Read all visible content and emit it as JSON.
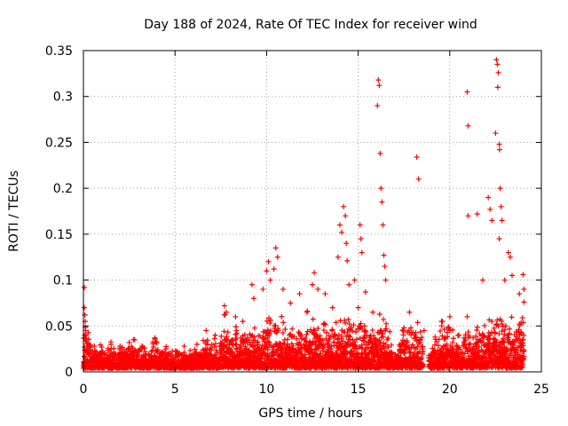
{
  "chart_data": {
    "type": "scatter",
    "title": "Day 188 of 2024, Rate Of TEC Index for receiver wind",
    "xlabel": "GPS time / hours",
    "ylabel": "ROTI / TECUs",
    "xlim": [
      0,
      25
    ],
    "ylim": [
      0,
      0.35
    ],
    "xticks": [
      0,
      5,
      10,
      15,
      20,
      25
    ],
    "xtick_labels": [
      "0",
      "5",
      "10",
      "15",
      "20",
      "25"
    ],
    "yticks": [
      0,
      0.05,
      0.1,
      0.15,
      0.2,
      0.25,
      0.3,
      0.35
    ],
    "ytick_labels": [
      "0",
      "0.05",
      "0.1",
      "0.15",
      "0.2",
      "0.25",
      "0.3",
      "0.35"
    ],
    "grid": true,
    "marker": "+",
    "color": "#ff0000",
    "series": [
      {
        "name": "wind",
        "points": [
          [
            0.05,
            0.092
          ],
          [
            0.05,
            0.07
          ],
          [
            0.08,
            0.062
          ],
          [
            0.1,
            0.055
          ],
          [
            0.12,
            0.045
          ],
          [
            0.3,
            0.03
          ],
          [
            0.6,
            0.028
          ],
          [
            1.0,
            0.027
          ],
          [
            1.5,
            0.03
          ],
          [
            2.0,
            0.028
          ],
          [
            2.5,
            0.032
          ],
          [
            2.8,
            0.035
          ],
          [
            3.2,
            0.028
          ],
          [
            3.9,
            0.037
          ],
          [
            4.5,
            0.025
          ],
          [
            5.5,
            0.028
          ],
          [
            6.2,
            0.03
          ],
          [
            6.7,
            0.045
          ],
          [
            7.2,
            0.04
          ],
          [
            7.7,
            0.072
          ],
          [
            7.8,
            0.065
          ],
          [
            8.3,
            0.06
          ],
          [
            8.7,
            0.055
          ],
          [
            9.2,
            0.095
          ],
          [
            9.3,
            0.08
          ],
          [
            9.8,
            0.09
          ],
          [
            10.0,
            0.11
          ],
          [
            10.1,
            0.12
          ],
          [
            10.2,
            0.1
          ],
          [
            10.4,
            0.112
          ],
          [
            10.5,
            0.135
          ],
          [
            10.6,
            0.125
          ],
          [
            10.9,
            0.09
          ],
          [
            11.3,
            0.075
          ],
          [
            11.8,
            0.085
          ],
          [
            12.2,
            0.065
          ],
          [
            12.5,
            0.095
          ],
          [
            12.6,
            0.108
          ],
          [
            12.8,
            0.09
          ],
          [
            13.2,
            0.085
          ],
          [
            13.6,
            0.07
          ],
          [
            13.9,
            0.125
          ],
          [
            14.0,
            0.16
          ],
          [
            14.1,
            0.152
          ],
          [
            14.2,
            0.18
          ],
          [
            14.3,
            0.17
          ],
          [
            14.35,
            0.14
          ],
          [
            14.4,
            0.121
          ],
          [
            14.5,
            0.095
          ],
          [
            14.8,
            0.1
          ],
          [
            15.0,
            0.07
          ],
          [
            15.1,
            0.16
          ],
          [
            15.15,
            0.145
          ],
          [
            15.2,
            0.13
          ],
          [
            15.4,
            0.087
          ],
          [
            15.8,
            0.065
          ],
          [
            16.05,
            0.29
          ],
          [
            16.1,
            0.318
          ],
          [
            16.15,
            0.312
          ],
          [
            16.2,
            0.238
          ],
          [
            16.25,
            0.2
          ],
          [
            16.3,
            0.185
          ],
          [
            16.35,
            0.16
          ],
          [
            16.4,
            0.127
          ],
          [
            16.45,
            0.115
          ],
          [
            16.5,
            0.1
          ],
          [
            17.5,
            0.048
          ],
          [
            17.8,
            0.065
          ],
          [
            18.2,
            0.234
          ],
          [
            18.3,
            0.21
          ],
          [
            18.6,
            0.045
          ],
          [
            19.2,
            0.038
          ],
          [
            19.6,
            0.055
          ],
          [
            20.0,
            0.06
          ],
          [
            20.5,
            0.04
          ],
          [
            20.95,
            0.305
          ],
          [
            21.0,
            0.268
          ],
          [
            21.0,
            0.17
          ],
          [
            21.5,
            0.172
          ],
          [
            21.8,
            0.1
          ],
          [
            22.1,
            0.19
          ],
          [
            22.2,
            0.177
          ],
          [
            22.3,
            0.165
          ],
          [
            22.5,
            0.26
          ],
          [
            22.55,
            0.34
          ],
          [
            22.6,
            0.335
          ],
          [
            22.65,
            0.326
          ],
          [
            22.62,
            0.31
          ],
          [
            22.7,
            0.248
          ],
          [
            22.72,
            0.242
          ],
          [
            22.75,
            0.2
          ],
          [
            22.8,
            0.18
          ],
          [
            22.85,
            0.165
          ],
          [
            22.7,
            0.145
          ],
          [
            23.0,
            0.1
          ],
          [
            23.2,
            0.13
          ],
          [
            23.3,
            0.125
          ],
          [
            23.4,
            0.105
          ],
          [
            23.8,
            0.085
          ],
          [
            24.0,
            0.106
          ],
          [
            24.05,
            0.09
          ],
          [
            24.05,
            0.076
          ]
        ]
      }
    ]
  }
}
